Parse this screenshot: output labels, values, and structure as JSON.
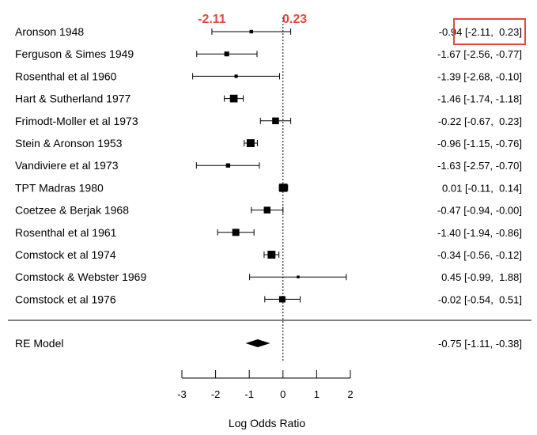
{
  "chart_data": {
    "type": "forest",
    "xlabel": "Log Odds Ratio",
    "xlim": [
      -3,
      2
    ],
    "ticks": [
      -3,
      -2,
      -1,
      0,
      1,
      2
    ],
    "tick_labels": [
      "-3",
      "-2",
      "-1",
      "0",
      "1",
      "2"
    ],
    "reference_line": 0,
    "studies": [
      {
        "label": "Aronson 1948",
        "est": -0.94,
        "lo": -2.11,
        "hi": 0.23,
        "text": "-0.94 [-2.11,  0.23]",
        "weight": 1.0
      },
      {
        "label": "Ferguson & Simes 1949",
        "est": -1.67,
        "lo": -2.56,
        "hi": -0.77,
        "text": "-1.67 [-2.56, -0.77]",
        "weight": 1.7
      },
      {
        "label": "Rosenthal et al 1960",
        "est": -1.39,
        "lo": -2.68,
        "hi": -0.1,
        "text": "-1.39 [-2.68, -0.10]",
        "weight": 0.9
      },
      {
        "label": "Hart & Sutherland 1977",
        "est": -1.46,
        "lo": -1.74,
        "hi": -1.18,
        "text": "-1.46 [-1.74, -1.18]",
        "weight": 3.2
      },
      {
        "label": "Frimodt-Moller et al 1973",
        "est": -0.22,
        "lo": -0.67,
        "hi": 0.23,
        "text": "-0.22 [-0.67,  0.23]",
        "weight": 2.7
      },
      {
        "label": "Stein & Aronson 1953",
        "est": -0.96,
        "lo": -1.15,
        "hi": -0.76,
        "text": "-0.96 [-1.15, -0.76]",
        "weight": 3.3
      },
      {
        "label": "Vandiviere et al 1973",
        "est": -1.63,
        "lo": -2.57,
        "hi": -0.7,
        "text": "-1.63 [-2.57, -0.70]",
        "weight": 1.4
      },
      {
        "label": "TPT Madras 1980",
        "est": 0.01,
        "lo": -0.11,
        "hi": 0.14,
        "text": " 0.01 [-0.11,  0.14]",
        "weight": 3.5
      },
      {
        "label": "Coetzee & Berjak 1968",
        "est": -0.47,
        "lo": -0.94,
        "hi": -0.0,
        "text": "-0.47 [-0.94, -0.00]",
        "weight": 2.7
      },
      {
        "label": "Rosenthal et al 1961",
        "est": -1.4,
        "lo": -1.94,
        "hi": -0.86,
        "text": "-1.40 [-1.94, -0.86]",
        "weight": 2.9
      },
      {
        "label": "Comstock et al 1974",
        "est": -0.34,
        "lo": -0.56,
        "hi": -0.12,
        "text": "-0.34 [-0.56, -0.12]",
        "weight": 3.3
      },
      {
        "label": "Comstock & Webster 1969",
        "est": 0.45,
        "lo": -0.99,
        "hi": 1.88,
        "text": " 0.45 [-0.99,  1.88]",
        "weight": 0.6
      },
      {
        "label": "Comstock et al 1976",
        "est": -0.02,
        "lo": -0.54,
        "hi": 0.51,
        "text": "-0.02 [-0.54,  0.51]",
        "weight": 2.5
      }
    ],
    "summary": {
      "label": "RE Model",
      "est": -0.75,
      "lo": -1.11,
      "hi": -0.38,
      "text": "-0.75 [-1.11, -0.38]"
    },
    "annotations": {
      "ci_low_text": "-2.11",
      "ci_high_text": "0.23",
      "color": "#e2483f"
    }
  }
}
